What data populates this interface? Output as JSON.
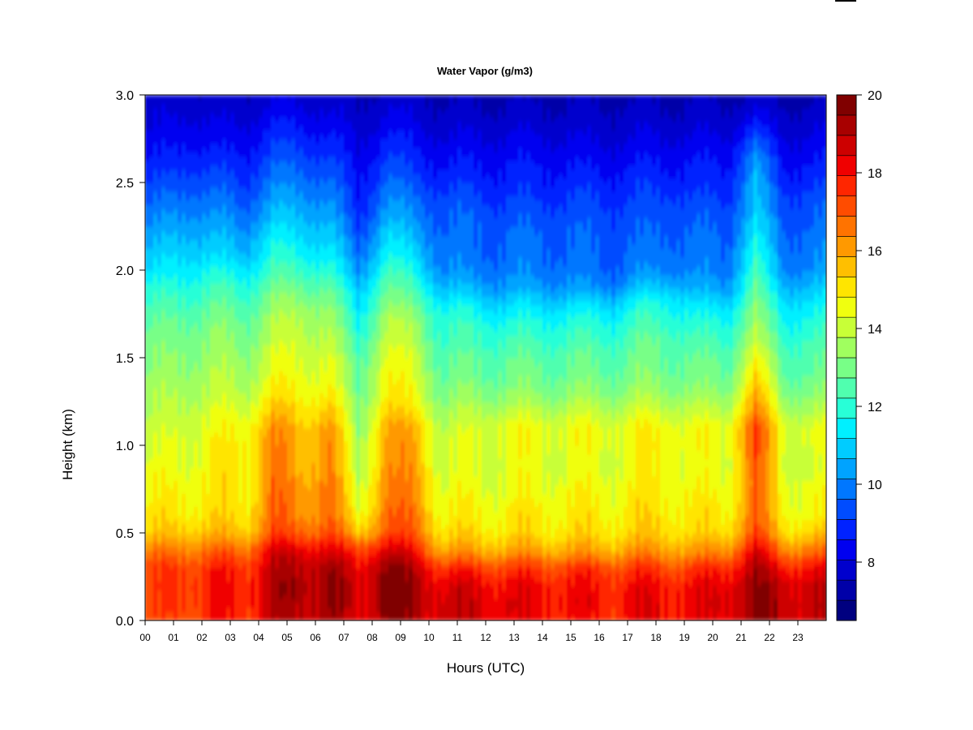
{
  "chart_data": {
    "type": "heatmap",
    "title": "Water Vapor (g/m3)",
    "xlabel": "Hours (UTC)",
    "ylabel": "Height (km)",
    "x_ticks": [
      "00",
      "01",
      "02",
      "03",
      "04",
      "05",
      "06",
      "07",
      "08",
      "09",
      "10",
      "11",
      "12",
      "13",
      "14",
      "15",
      "16",
      "17",
      "18",
      "19",
      "20",
      "21",
      "22",
      "23"
    ],
    "y_ticks": [
      "0.0",
      "0.5",
      "1.0",
      "1.5",
      "2.0",
      "2.5",
      "3.0"
    ],
    "xlim": [
      0,
      24
    ],
    "ylim": [
      0,
      3
    ],
    "colorbar": {
      "min": 6.5,
      "max": 20,
      "step": 0.5,
      "ticks": [
        "8",
        "10",
        "12",
        "14",
        "16",
        "18",
        "20"
      ],
      "colors": [
        "#000080",
        "#0000A8",
        "#0000CD",
        "#0000F0",
        "#0022FF",
        "#004CFF",
        "#0077FF",
        "#00A3FF",
        "#00CCFF",
        "#00F0FF",
        "#28FFD7",
        "#50FFAF",
        "#78FF87",
        "#A0FF5F",
        "#C8FF37",
        "#F0FF0F",
        "#FFE500",
        "#FFBF00",
        "#FF9900",
        "#FF7300",
        "#FF4C00",
        "#FF2600",
        "#F00000",
        "#CD0000",
        "#A80000",
        "#800000"
      ]
    },
    "height_levels_km": [
      0.0,
      0.1,
      0.2,
      0.3,
      0.4,
      0.5,
      0.6,
      0.7,
      0.8,
      0.9,
      1.0,
      1.1,
      1.2,
      1.3,
      1.4,
      1.5,
      1.6,
      1.7,
      1.8,
      1.9,
      2.0,
      2.1,
      2.2,
      2.3,
      2.4,
      2.5,
      2.6,
      2.7,
      2.8,
      2.9,
      3.0
    ],
    "hour_bins_utc": [
      "00",
      "01",
      "02",
      "03",
      "04",
      "05",
      "06",
      "07",
      "08",
      "09",
      "10",
      "11",
      "12",
      "13",
      "14",
      "15",
      "16",
      "17",
      "18",
      "19",
      "20",
      "21",
      "22",
      "23"
    ],
    "values_g_m3": [
      [
        16.5,
        17.0,
        17.3,
        17.2,
        18.3,
        18.5,
        18.8,
        17.8,
        19.2,
        18.5,
        18.2,
        18.2,
        18.0,
        17.6,
        17.6,
        17.4,
        17.4,
        17.8,
        17.8,
        17.6,
        18.0,
        19.0,
        18.6,
        18.3
      ],
      [
        16.8,
        17.2,
        17.5,
        17.4,
        18.5,
        18.7,
        19.0,
        17.9,
        19.4,
        18.7,
        18.2,
        18.2,
        18.0,
        17.8,
        17.8,
        17.6,
        17.6,
        17.8,
        17.8,
        17.8,
        18.2,
        19.0,
        18.6,
        18.4
      ],
      [
        16.9,
        17.3,
        17.5,
        17.4,
        18.6,
        18.8,
        19.1,
        17.9,
        19.5,
        18.7,
        18.0,
        18.0,
        17.8,
        17.6,
        17.6,
        17.5,
        17.5,
        17.6,
        17.6,
        17.6,
        18.0,
        18.9,
        18.4,
        18.2
      ],
      [
        16.8,
        17.1,
        17.3,
        17.2,
        18.4,
        18.6,
        18.9,
        17.7,
        19.2,
        18.5,
        17.2,
        17.2,
        17.0,
        17.0,
        17.0,
        17.0,
        17.0,
        17.0,
        17.0,
        17.0,
        17.4,
        18.6,
        17.6,
        17.6
      ],
      [
        16.0,
        16.3,
        16.4,
        16.4,
        18.0,
        18.0,
        18.0,
        16.9,
        18.2,
        17.6,
        15.6,
        15.6,
        15.6,
        15.6,
        15.6,
        15.6,
        15.6,
        15.8,
        15.8,
        15.6,
        16.0,
        18.0,
        16.2,
        16.2
      ],
      [
        15.0,
        15.3,
        15.3,
        15.2,
        16.8,
        16.6,
        16.8,
        15.2,
        16.8,
        16.6,
        14.8,
        14.8,
        14.8,
        14.8,
        14.8,
        14.8,
        14.8,
        15.0,
        15.0,
        14.8,
        15.0,
        16.8,
        15.0,
        15.0
      ],
      [
        14.6,
        14.8,
        14.8,
        14.7,
        16.4,
        16.0,
        16.4,
        14.2,
        16.4,
        16.2,
        14.4,
        14.5,
        14.5,
        14.6,
        14.6,
        14.6,
        14.6,
        14.8,
        14.8,
        14.6,
        14.6,
        16.4,
        14.6,
        14.4
      ],
      [
        14.4,
        14.6,
        14.7,
        14.6,
        16.4,
        15.8,
        16.4,
        13.8,
        16.2,
        16.0,
        14.2,
        14.3,
        14.3,
        14.4,
        14.4,
        14.4,
        14.4,
        14.6,
        14.6,
        14.4,
        14.4,
        16.4,
        14.4,
        14.2
      ],
      [
        14.2,
        14.4,
        14.6,
        14.6,
        16.2,
        15.6,
        16.2,
        13.6,
        16.0,
        15.8,
        14.0,
        14.1,
        14.1,
        14.2,
        14.2,
        14.2,
        14.2,
        14.5,
        14.5,
        14.2,
        14.2,
        16.4,
        14.2,
        14.0
      ],
      [
        14.0,
        14.2,
        14.4,
        14.6,
        16.0,
        15.4,
        16.0,
        13.4,
        15.8,
        15.6,
        13.8,
        14.0,
        14.0,
        14.0,
        14.0,
        14.0,
        14.0,
        14.4,
        14.4,
        14.0,
        14.0,
        16.6,
        14.0,
        13.8
      ],
      [
        13.8,
        14.2,
        14.4,
        14.6,
        16.0,
        15.4,
        16.0,
        13.2,
        15.8,
        15.6,
        13.8,
        14.0,
        14.2,
        14.2,
        14.2,
        14.2,
        14.2,
        14.5,
        14.5,
        14.2,
        14.2,
        16.8,
        14.2,
        14.0
      ],
      [
        13.6,
        14.0,
        14.2,
        14.4,
        15.8,
        15.2,
        15.8,
        13.0,
        15.6,
        15.4,
        13.6,
        13.8,
        14.2,
        14.2,
        14.2,
        14.2,
        14.2,
        14.4,
        14.4,
        14.2,
        14.2,
        16.8,
        14.2,
        14.0
      ],
      [
        13.4,
        13.8,
        13.9,
        14.0,
        15.2,
        14.8,
        15.2,
        12.8,
        15.0,
        14.6,
        13.2,
        13.4,
        13.6,
        13.6,
        13.6,
        13.6,
        13.6,
        13.8,
        13.8,
        13.6,
        13.6,
        16.0,
        13.6,
        13.4
      ],
      [
        13.2,
        13.5,
        13.6,
        13.6,
        14.6,
        14.4,
        14.6,
        12.6,
        14.6,
        14.2,
        12.8,
        13.0,
        13.0,
        13.0,
        13.0,
        13.0,
        13.0,
        13.2,
        13.2,
        13.0,
        13.0,
        15.4,
        13.0,
        12.9
      ],
      [
        13.0,
        13.3,
        13.4,
        13.3,
        14.2,
        14.2,
        14.2,
        12.4,
        14.4,
        14.0,
        12.5,
        12.6,
        12.6,
        12.6,
        12.6,
        12.6,
        12.6,
        12.8,
        12.8,
        12.6,
        12.6,
        14.8,
        12.6,
        12.5
      ],
      [
        12.8,
        13.1,
        13.2,
        13.1,
        14.0,
        14.0,
        14.0,
        12.2,
        14.2,
        13.8,
        12.3,
        12.4,
        12.4,
        12.4,
        12.4,
        12.4,
        12.4,
        12.6,
        12.6,
        12.4,
        12.4,
        14.2,
        12.4,
        12.3
      ],
      [
        12.6,
        12.9,
        13.0,
        12.8,
        13.6,
        13.8,
        13.6,
        11.8,
        13.8,
        13.4,
        12.0,
        12.0,
        12.0,
        12.0,
        12.0,
        12.0,
        12.0,
        12.4,
        12.4,
        12.0,
        12.0,
        13.6,
        12.0,
        12.0
      ],
      [
        12.4,
        12.6,
        12.8,
        12.6,
        13.4,
        13.6,
        13.4,
        11.4,
        13.6,
        13.2,
        11.8,
        11.8,
        11.6,
        11.6,
        11.6,
        11.6,
        11.6,
        12.0,
        12.0,
        11.6,
        11.6,
        13.2,
        11.6,
        11.6
      ],
      [
        12.0,
        12.2,
        12.4,
        12.2,
        13.0,
        13.2,
        13.0,
        11.0,
        13.0,
        12.6,
        11.4,
        11.2,
        11.0,
        11.0,
        11.0,
        11.0,
        11.0,
        11.6,
        11.6,
        11.0,
        11.0,
        12.8,
        11.2,
        11.2
      ],
      [
        11.6,
        11.8,
        12.0,
        11.8,
        12.6,
        12.6,
        12.4,
        10.6,
        12.6,
        12.0,
        10.6,
        10.4,
        10.2,
        10.2,
        10.2,
        10.0,
        10.0,
        10.6,
        10.8,
        10.2,
        10.2,
        12.4,
        10.6,
        10.6
      ],
      [
        11.0,
        11.4,
        11.4,
        11.2,
        12.0,
        12.0,
        11.8,
        10.0,
        12.0,
        11.4,
        10.0,
        9.8,
        9.8,
        9.8,
        9.8,
        9.6,
        9.6,
        9.8,
        10.0,
        9.8,
        9.8,
        12.0,
        10.0,
        10.0
      ],
      [
        10.6,
        11.0,
        10.8,
        10.6,
        11.6,
        11.4,
        11.2,
        9.6,
        11.4,
        10.8,
        9.8,
        9.6,
        9.6,
        9.6,
        9.6,
        9.5,
        9.5,
        9.6,
        9.8,
        9.6,
        9.6,
        11.6,
        9.8,
        9.8
      ],
      [
        10.2,
        10.6,
        10.4,
        10.2,
        11.2,
        11.0,
        10.8,
        9.2,
        11.0,
        10.4,
        9.6,
        9.5,
        9.5,
        9.5,
        9.5,
        9.4,
        9.4,
        9.4,
        9.6,
        9.5,
        9.5,
        11.2,
        9.6,
        9.6
      ],
      [
        9.8,
        10.2,
        10.0,
        9.8,
        10.6,
        10.6,
        10.4,
        8.8,
        10.4,
        10.0,
        9.4,
        9.4,
        9.3,
        9.3,
        9.3,
        9.2,
        9.2,
        9.2,
        9.4,
        9.3,
        9.3,
        10.8,
        9.4,
        9.4
      ],
      [
        9.4,
        9.8,
        9.6,
        9.4,
        10.2,
        10.2,
        10.0,
        8.6,
        10.0,
        9.6,
        9.2,
        9.2,
        9.0,
        9.0,
        9.0,
        9.0,
        9.0,
        9.0,
        9.2,
        9.0,
        9.0,
        10.6,
        9.2,
        9.2
      ],
      [
        9.0,
        9.4,
        9.2,
        9.0,
        9.8,
        9.8,
        9.6,
        8.4,
        9.6,
        9.2,
        8.8,
        8.8,
        8.7,
        8.7,
        8.7,
        8.7,
        8.7,
        8.8,
        8.8,
        8.7,
        8.7,
        10.4,
        8.8,
        8.8
      ],
      [
        8.6,
        9.0,
        8.8,
        8.7,
        9.4,
        9.4,
        9.2,
        8.2,
        9.2,
        8.8,
        8.5,
        8.5,
        8.5,
        8.5,
        8.5,
        8.4,
        8.4,
        8.5,
        8.5,
        8.5,
        8.5,
        10.2,
        8.5,
        8.5
      ],
      [
        8.3,
        8.6,
        8.4,
        8.4,
        9.0,
        9.0,
        8.8,
        8.0,
        8.8,
        8.5,
        8.2,
        8.2,
        8.2,
        8.2,
        8.2,
        8.1,
        8.1,
        8.2,
        8.2,
        8.2,
        8.2,
        9.6,
        8.2,
        8.2
      ],
      [
        8.0,
        8.3,
        8.1,
        8.1,
        8.6,
        8.6,
        8.4,
        7.8,
        8.4,
        8.2,
        7.8,
        7.9,
        7.9,
        7.9,
        7.9,
        7.8,
        7.8,
        7.9,
        7.9,
        7.9,
        7.9,
        8.8,
        7.9,
        7.9
      ],
      [
        7.8,
        8.0,
        7.8,
        7.8,
        8.2,
        8.2,
        8.0,
        7.6,
        8.0,
        7.9,
        7.6,
        7.6,
        7.6,
        7.6,
        7.6,
        7.6,
        7.6,
        7.6,
        7.6,
        7.6,
        7.6,
        8.0,
        7.6,
        7.6
      ],
      [
        7.6,
        7.7,
        7.6,
        7.6,
        7.8,
        7.8,
        7.7,
        7.4,
        7.7,
        7.6,
        7.4,
        7.4,
        7.4,
        7.4,
        7.4,
        7.4,
        7.4,
        7.4,
        7.4,
        7.4,
        7.4,
        7.6,
        7.4,
        7.4
      ]
    ]
  }
}
